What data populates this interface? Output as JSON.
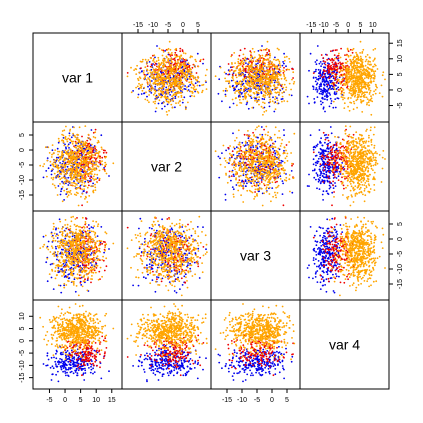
{
  "chart_data": {
    "type": "scatter",
    "variables": [
      "var 1",
      "var 2",
      "var 3",
      "var 4"
    ],
    "axis_ticks": [
      [
        -5,
        0,
        5,
        10,
        15
      ],
      [
        -15,
        -10,
        -5,
        0,
        5
      ],
      [
        -15,
        -10,
        -5,
        0,
        5
      ],
      [
        -15,
        -10,
        -5,
        0,
        5,
        10
      ]
    ],
    "axis_ranges": [
      [
        -9,
        17
      ],
      [
        -19,
        8
      ],
      [
        -19,
        8
      ],
      [
        -18,
        15
      ]
    ],
    "groups": [
      {
        "color": "#0000ee",
        "n": 250,
        "mean": [
          3,
          -5,
          -5,
          -9
        ],
        "sd": [
          4,
          5,
          5,
          3
        ]
      },
      {
        "color": "#ee0000",
        "n": 150,
        "mean": [
          7,
          -3,
          -5,
          -5
        ],
        "sd": [
          3,
          4,
          4,
          3
        ]
      },
      {
        "color": "#ffa500",
        "n": 600,
        "mean": [
          4,
          -4,
          -4,
          4
        ],
        "sd": [
          4,
          5,
          5,
          4
        ]
      }
    ],
    "grid": false,
    "legend": "none"
  }
}
